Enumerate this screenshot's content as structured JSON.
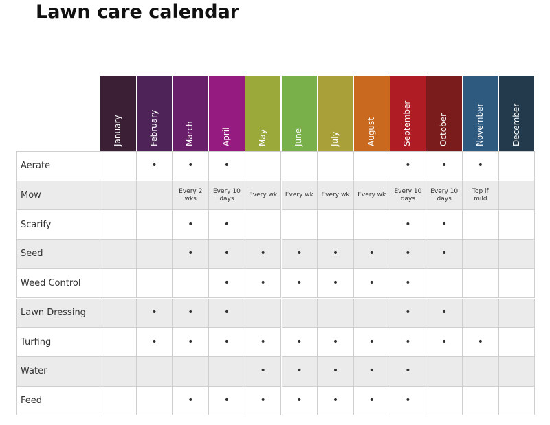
{
  "title": "Lawn care calendar",
  "table": {
    "months": [
      "January",
      "February",
      "March",
      "April",
      "May",
      "June",
      "July",
      "August",
      "September",
      "October",
      "November",
      "December"
    ],
    "rows": [
      {
        "label": "Aerate",
        "cells": [
          null,
          "•",
          "•",
          "•",
          null,
          null,
          null,
          null,
          "•",
          "•",
          "•",
          null
        ]
      },
      {
        "label": "Mow",
        "cells": [
          null,
          null,
          "Every 2 wks",
          "Every 10 days",
          "Every wk",
          "Every wk",
          "Every wk",
          "Every wk",
          "Every 10 days",
          "Every 10 days",
          "Top if mild",
          null
        ]
      },
      {
        "label": "Scarify",
        "cells": [
          null,
          null,
          "•",
          "•",
          null,
          null,
          null,
          null,
          "•",
          "•",
          null,
          null
        ]
      },
      {
        "label": "Seed",
        "cells": [
          null,
          null,
          "•",
          "•",
          "•",
          "•",
          "•",
          "•",
          "•",
          "•",
          null,
          null
        ]
      },
      {
        "label": "Weed Control",
        "cells": [
          null,
          null,
          null,
          "•",
          "•",
          "•",
          "•",
          "•",
          "•",
          null,
          null,
          null
        ]
      },
      {
        "label": "Lawn Dressing",
        "cells": [
          null,
          "•",
          "•",
          "•",
          null,
          null,
          null,
          null,
          "•",
          "•",
          null,
          null
        ]
      },
      {
        "label": "Turfing",
        "cells": [
          null,
          "•",
          "•",
          "•",
          "•",
          "•",
          "•",
          "•",
          "•",
          "•",
          "•",
          null
        ]
      },
      {
        "label": "Water",
        "cells": [
          null,
          null,
          null,
          null,
          "•",
          "•",
          "•",
          "•",
          "•",
          null,
          null,
          null
        ]
      },
      {
        "label": "Feed",
        "cells": [
          null,
          null,
          "•",
          "•",
          "•",
          "•",
          "•",
          "•",
          "•",
          null,
          null,
          null
        ]
      }
    ]
  }
}
